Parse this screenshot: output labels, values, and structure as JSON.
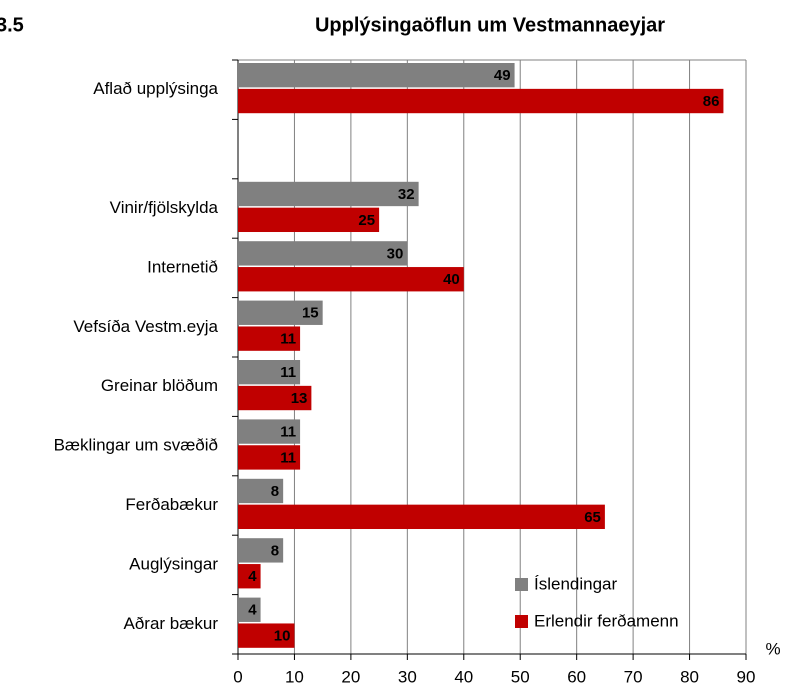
{
  "chart_data": {
    "type": "hbar",
    "figure_label": "3.5",
    "title": "Upplýsingaöflun um Vestmannaeyjar",
    "xlabel": "%",
    "categories": [
      "Aflað upplýsinga",
      null,
      "Vinir/fjölskylda",
      "Internetið",
      "Vefsíða Vestm.eyja",
      "Greinar blöðum",
      "Bæklingar um svæðið",
      "Ferðabækur",
      "Auglýsingar",
      "Aðrar bækur"
    ],
    "series": [
      {
        "name": "Íslendingar",
        "color": "#808080",
        "values": [
          49,
          null,
          32,
          30,
          15,
          11,
          11,
          8,
          8,
          4
        ]
      },
      {
        "name": "Erlendir ferðamenn",
        "color": "#c00000",
        "values": [
          86,
          null,
          25,
          40,
          11,
          13,
          11,
          65,
          4,
          10
        ]
      }
    ],
    "xlim": [
      0,
      90
    ],
    "xticks": [
      0,
      10,
      20,
      30,
      40,
      50,
      60,
      70,
      80,
      90
    ],
    "grid": true,
    "legend": "lower right"
  }
}
